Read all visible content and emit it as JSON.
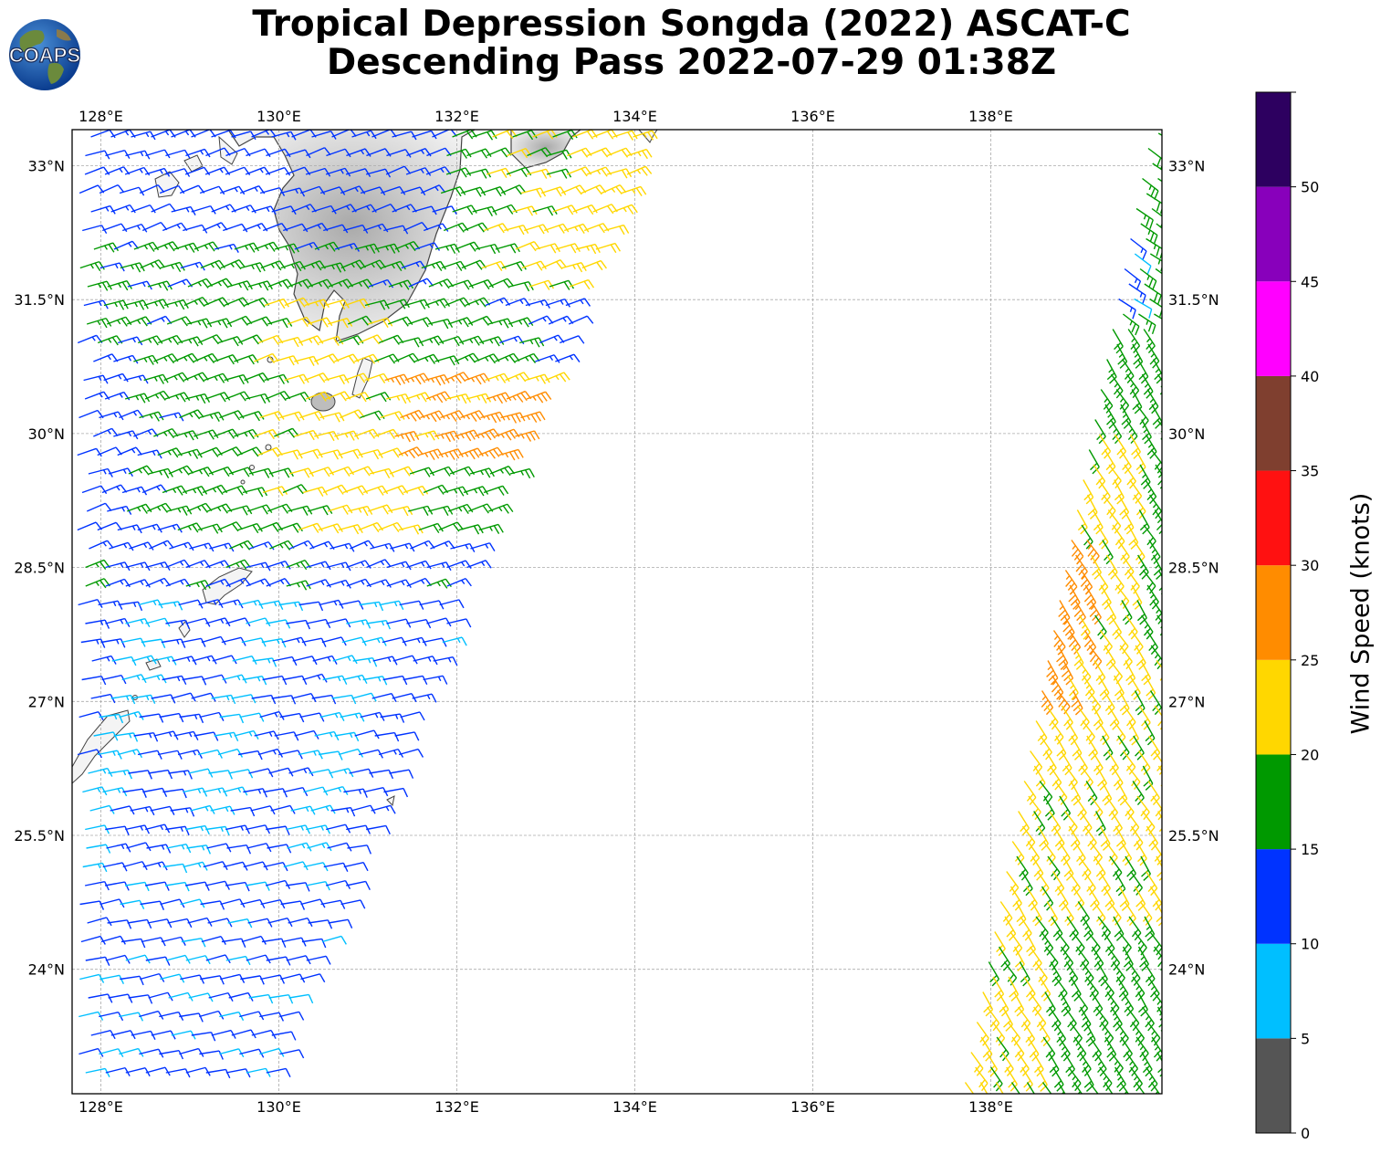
{
  "title": {
    "line1": "Tropical Depression Songda (2022) ASCAT-C",
    "line2": "Descending Pass 2022-07-29 01:38Z"
  },
  "logo": {
    "text": "COAPS"
  },
  "map": {
    "lon_range": [
      127.7,
      139.9
    ],
    "lat_range": [
      22.8,
      33.6
    ],
    "lon_ticks": [
      {
        "value": 128,
        "label": "128°E"
      },
      {
        "value": 130,
        "label": "130°E"
      },
      {
        "value": 132,
        "label": "132°E"
      },
      {
        "value": 134,
        "label": "134°E"
      },
      {
        "value": 136,
        "label": "136°E"
      },
      {
        "value": 138,
        "label": "138°E"
      }
    ],
    "lat_ticks": [
      {
        "value": 33,
        "label": "33°N"
      },
      {
        "value": 31.5,
        "label": "31.5°N"
      },
      {
        "value": 30,
        "label": "30°N"
      },
      {
        "value": 28.5,
        "label": "28.5°N"
      },
      {
        "value": 27,
        "label": "27°N"
      },
      {
        "value": 25.5,
        "label": "25.5°N"
      },
      {
        "value": 24,
        "label": "24°N"
      }
    ],
    "gridlines": true
  },
  "colorbar": {
    "label": "Wind Speed (knots)",
    "ticks": [
      "0",
      "5",
      "10",
      "15",
      "20",
      "25",
      "30",
      "35",
      "40",
      "45",
      "50"
    ],
    "bins": [
      {
        "min": 0,
        "max": 5,
        "color": "#555555"
      },
      {
        "min": 5,
        "max": 10,
        "color": "#00bfff"
      },
      {
        "min": 10,
        "max": 15,
        "color": "#0033ff"
      },
      {
        "min": 15,
        "max": 20,
        "color": "#009900"
      },
      {
        "min": 20,
        "max": 25,
        "color": "#ffd700"
      },
      {
        "min": 25,
        "max": 30,
        "color": "#ff8c00"
      },
      {
        "min": 30,
        "max": 35,
        "color": "#ff1111"
      },
      {
        "min": 35,
        "max": 40,
        "color": "#7f3f2f"
      },
      {
        "min": 40,
        "max": 45,
        "color": "#ff00ff"
      },
      {
        "min": 45,
        "max": 50,
        "color": "#8800bb"
      },
      {
        "min": 50,
        "max": 55,
        "color": "#2d0060"
      }
    ]
  }
}
